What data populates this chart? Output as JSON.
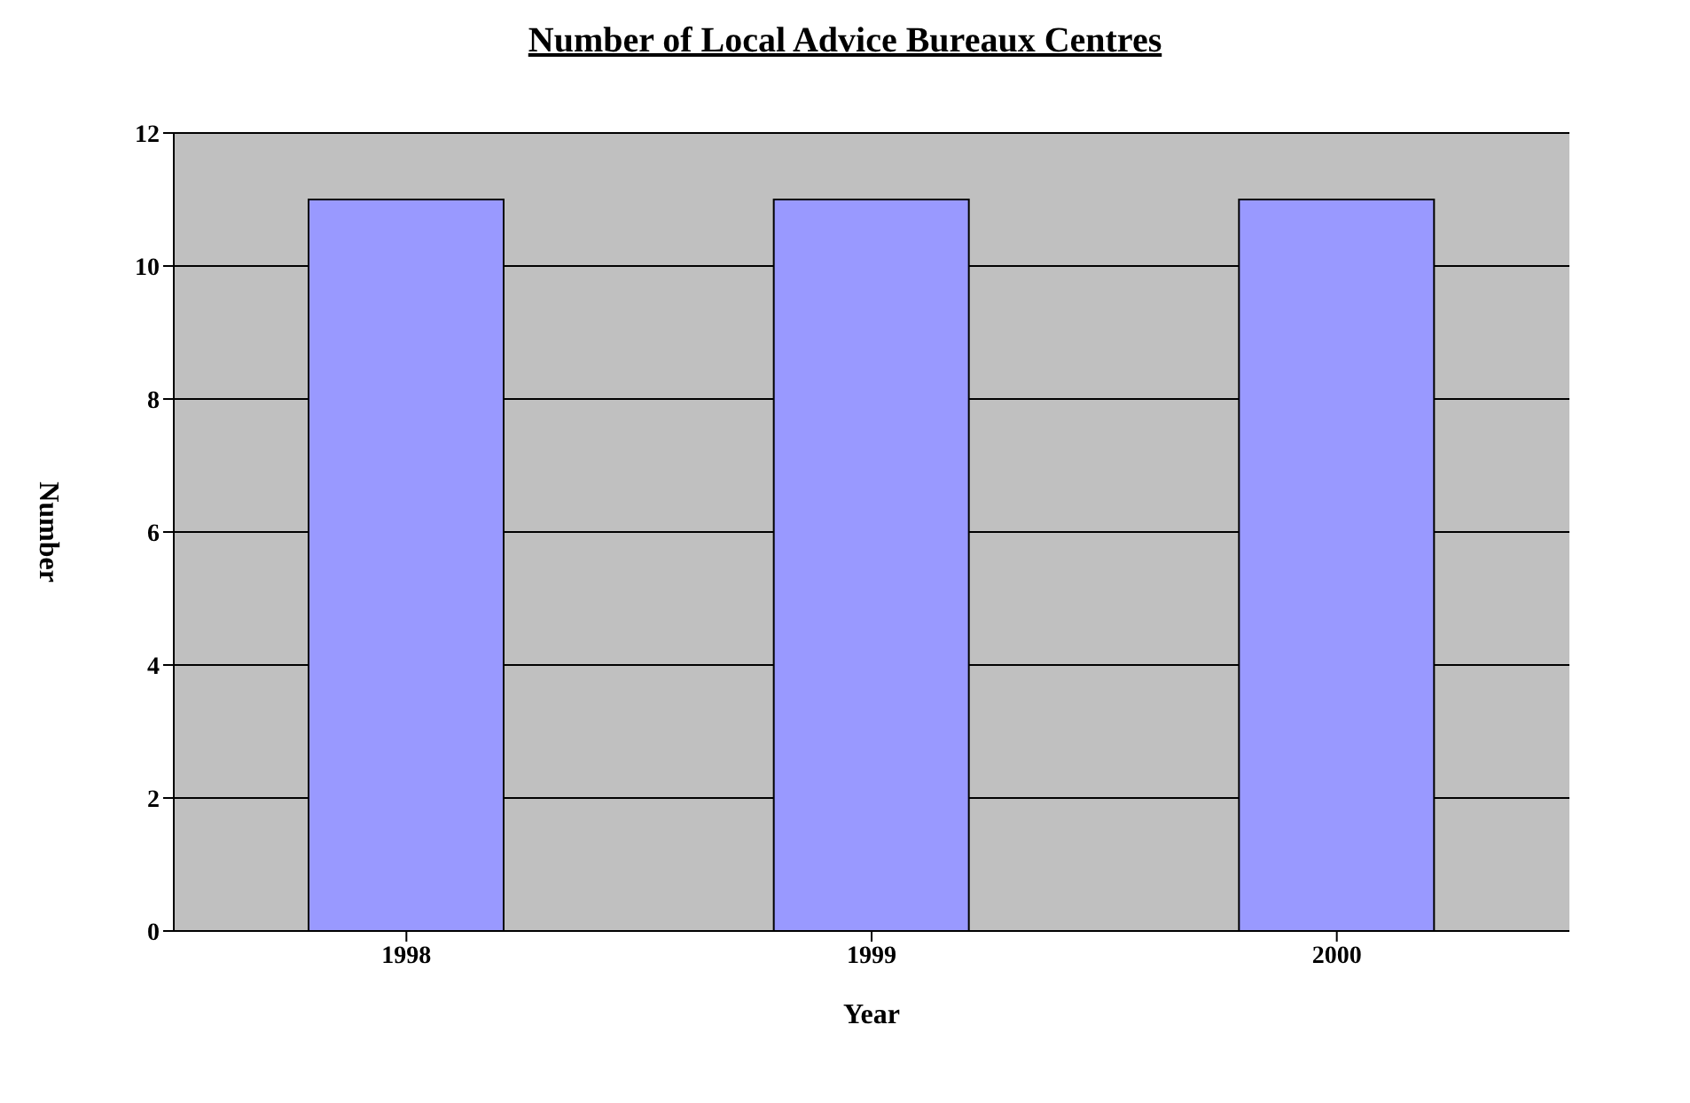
{
  "chart_data": {
    "type": "bar",
    "title": "Number of Local Advice Bureaux Centres",
    "xlabel": "Year",
    "ylabel": "Number",
    "categories": [
      "1998",
      "1999",
      "2000"
    ],
    "values": [
      11,
      11,
      11
    ],
    "color": "#9999ff",
    "ylim": [
      0,
      12
    ],
    "yticks": [
      0,
      2,
      4,
      6,
      8,
      10,
      12
    ],
    "grid": "y",
    "legend": false
  }
}
